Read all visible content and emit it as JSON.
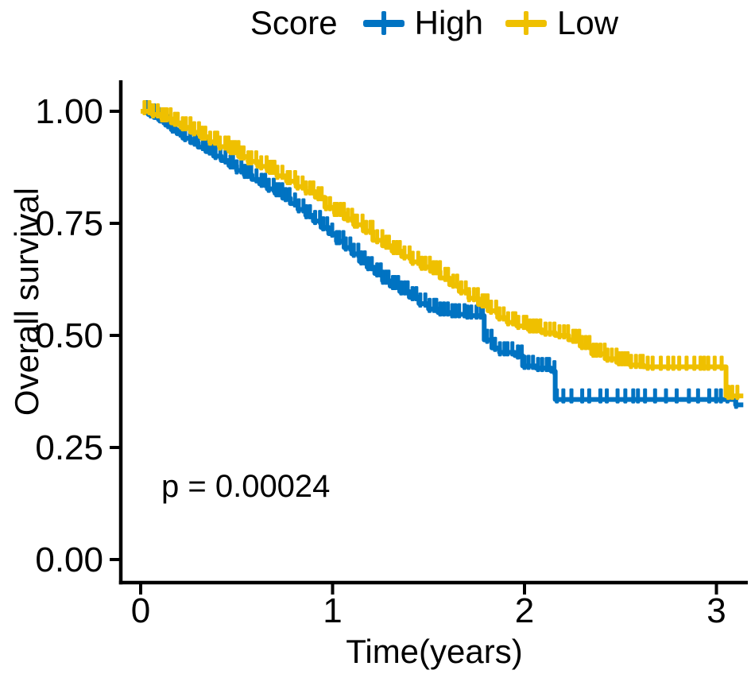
{
  "figure": {
    "background": "#ffffff",
    "text_color": "#000000"
  },
  "legend": {
    "title": "Score",
    "entries": [
      {
        "label": "High",
        "color": "#0073C2"
      },
      {
        "label": "Low",
        "color": "#EFC000"
      }
    ],
    "position": "top"
  },
  "axes": {
    "x_label": "Time(years)",
    "y_label": "Overall survival",
    "x_ticks": [
      {
        "value": 0,
        "label": "0"
      },
      {
        "value": 1,
        "label": "1"
      },
      {
        "value": 2,
        "label": "2"
      },
      {
        "value": 3,
        "label": "3"
      }
    ],
    "y_ticks": [
      {
        "value": 0.0,
        "label": "0.00"
      },
      {
        "value": 0.25,
        "label": "0.25"
      },
      {
        "value": 0.5,
        "label": "0.50"
      },
      {
        "value": 0.75,
        "label": "0.75"
      },
      {
        "value": 1.0,
        "label": "1.00"
      }
    ]
  },
  "annotations": {
    "p_value": "p = 0.00024"
  },
  "chart_data": {
    "type": "line",
    "subtype": "kaplan-meier-step",
    "title": "",
    "xlabel": "Time(years)",
    "ylabel": "Overall survival",
    "xlim": [
      0,
      3.15
    ],
    "ylim": [
      0,
      1.0
    ],
    "grid": false,
    "legend_position": "top",
    "legend_title": "Score",
    "annotation": "p = 0.00024",
    "series": [
      {
        "name": "High",
        "color": "#0073C2",
        "steps": [
          [
            0,
            1.0
          ],
          [
            0.04,
            0.993
          ],
          [
            0.07,
            0.986
          ],
          [
            0.1,
            0.978
          ],
          [
            0.13,
            0.969
          ],
          [
            0.16,
            0.959
          ],
          [
            0.19,
            0.95
          ],
          [
            0.22,
            0.94
          ],
          [
            0.26,
            0.93
          ],
          [
            0.3,
            0.92
          ],
          [
            0.34,
            0.91
          ],
          [
            0.38,
            0.9
          ],
          [
            0.42,
            0.89
          ],
          [
            0.46,
            0.879
          ],
          [
            0.5,
            0.868
          ],
          [
            0.54,
            0.858
          ],
          [
            0.58,
            0.848
          ],
          [
            0.62,
            0.838
          ],
          [
            0.66,
            0.827
          ],
          [
            0.7,
            0.817
          ],
          [
            0.74,
            0.806
          ],
          [
            0.78,
            0.794
          ],
          [
            0.82,
            0.781
          ],
          [
            0.86,
            0.768
          ],
          [
            0.9,
            0.755
          ],
          [
            0.94,
            0.741
          ],
          [
            0.98,
            0.727
          ],
          [
            1.02,
            0.71
          ],
          [
            1.06,
            0.696
          ],
          [
            1.1,
            0.682
          ],
          [
            1.14,
            0.665
          ],
          [
            1.18,
            0.652
          ],
          [
            1.22,
            0.638
          ],
          [
            1.26,
            0.622
          ],
          [
            1.3,
            0.61
          ],
          [
            1.35,
            0.598
          ],
          [
            1.4,
            0.585
          ],
          [
            1.45,
            0.571
          ],
          [
            1.5,
            0.559
          ],
          [
            1.55,
            0.551
          ],
          [
            1.62,
            0.547
          ],
          [
            1.7,
            0.544
          ],
          [
            1.79,
            0.49
          ],
          [
            1.83,
            0.472
          ],
          [
            1.87,
            0.462
          ],
          [
            1.95,
            0.455
          ],
          [
            1.99,
            0.432
          ],
          [
            2.06,
            0.427
          ],
          [
            2.14,
            0.42
          ],
          [
            2.16,
            0.357
          ],
          [
            3.07,
            0.357
          ],
          [
            3.1,
            0.345
          ],
          [
            3.14,
            0.345
          ]
        ],
        "censoring": {
          "start": 0.03,
          "end": 3.11,
          "knee": 2.16,
          "dense_spacing": 0.02,
          "sparse_spacing": 0.044,
          "seed": 12345
        }
      },
      {
        "name": "Low",
        "color": "#EFC000",
        "steps": [
          [
            0,
            1.0
          ],
          [
            0.06,
            0.993
          ],
          [
            0.11,
            0.984
          ],
          [
            0.16,
            0.974
          ],
          [
            0.21,
            0.964
          ],
          [
            0.26,
            0.953
          ],
          [
            0.31,
            0.943
          ],
          [
            0.36,
            0.932
          ],
          [
            0.41,
            0.921
          ],
          [
            0.46,
            0.911
          ],
          [
            0.51,
            0.899
          ],
          [
            0.56,
            0.888
          ],
          [
            0.61,
            0.877
          ],
          [
            0.66,
            0.867
          ],
          [
            0.71,
            0.856
          ],
          [
            0.76,
            0.844
          ],
          [
            0.81,
            0.832
          ],
          [
            0.86,
            0.821
          ],
          [
            0.91,
            0.808
          ],
          [
            0.96,
            0.786
          ],
          [
            1.01,
            0.773
          ],
          [
            1.06,
            0.76
          ],
          [
            1.11,
            0.747
          ],
          [
            1.16,
            0.733
          ],
          [
            1.21,
            0.712
          ],
          [
            1.26,
            0.7
          ],
          [
            1.31,
            0.688
          ],
          [
            1.36,
            0.676
          ],
          [
            1.41,
            0.664
          ],
          [
            1.46,
            0.653
          ],
          [
            1.51,
            0.643
          ],
          [
            1.56,
            0.628
          ],
          [
            1.61,
            0.613
          ],
          [
            1.66,
            0.598
          ],
          [
            1.71,
            0.583
          ],
          [
            1.76,
            0.569
          ],
          [
            1.81,
            0.555
          ],
          [
            1.86,
            0.54
          ],
          [
            1.91,
            0.529
          ],
          [
            1.96,
            0.521
          ],
          [
            2.02,
            0.513
          ],
          [
            2.09,
            0.506
          ],
          [
            2.16,
            0.5
          ],
          [
            2.23,
            0.49
          ],
          [
            2.29,
            0.476
          ],
          [
            2.35,
            0.459
          ],
          [
            2.42,
            0.448
          ],
          [
            2.48,
            0.44
          ],
          [
            2.55,
            0.434
          ],
          [
            2.62,
            0.43
          ],
          [
            3.05,
            0.43
          ],
          [
            3.05,
            0.365
          ],
          [
            3.14,
            0.365
          ]
        ],
        "censoring": {
          "start": 0.02,
          "end": 3.12,
          "knee": 2.62,
          "dense_spacing": 0.02,
          "sparse_spacing": 0.03,
          "seed": 98765
        }
      }
    ]
  }
}
